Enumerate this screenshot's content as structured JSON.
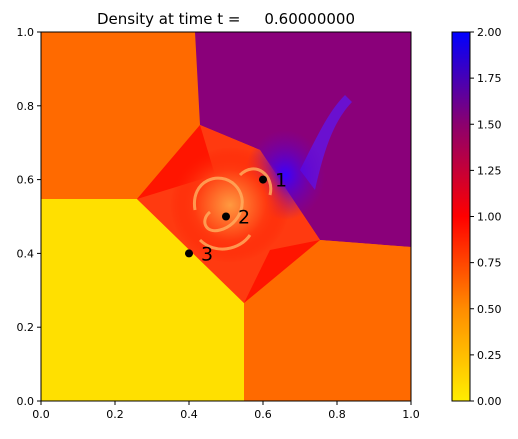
{
  "chart_data": {
    "type": "heatmap",
    "title": "Density at time t =     0.60000000",
    "xlabel": "",
    "ylabel": "",
    "xlim": [
      0,
      1
    ],
    "ylim": [
      0,
      1
    ],
    "x_ticks": [
      "0.0",
      "0.2",
      "0.4",
      "0.6",
      "0.8",
      "1.0"
    ],
    "y_ticks": [
      "0.0",
      "0.2",
      "0.4",
      "0.6",
      "0.8",
      "1.0"
    ],
    "grid": false,
    "colorbar": {
      "range": [
        0,
        2
      ],
      "ticks": [
        "0.00",
        "0.25",
        "0.50",
        "0.75",
        "1.00",
        "1.25",
        "1.50",
        "1.75",
        "2.00"
      ],
      "colormap": [
        "#ffee00",
        "#ff6a00",
        "#ff0000",
        "#0000ff"
      ]
    },
    "points": [
      {
        "label": "1",
        "x": 0.6,
        "y": 0.6
      },
      {
        "label": "2",
        "x": 0.5,
        "y": 0.5
      },
      {
        "label": "3",
        "x": 0.4,
        "y": 0.4
      }
    ],
    "regions": [
      {
        "name": "upper-left",
        "density": 0.5,
        "color": "#ff6a00"
      },
      {
        "name": "upper-right",
        "density": 1.5,
        "color": "#8a007a"
      },
      {
        "name": "lower-left",
        "density": 0.1,
        "color": "#ffe000"
      },
      {
        "name": "lower-right",
        "density": 0.5,
        "color": "#ff6a00"
      }
    ]
  }
}
